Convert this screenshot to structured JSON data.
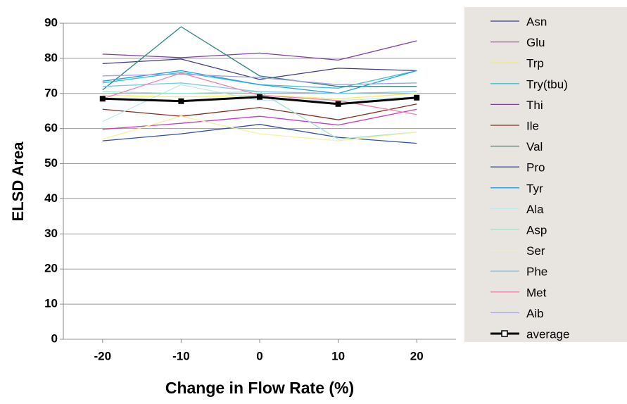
{
  "chart_data": {
    "type": "line",
    "x_label": "Change in Flow Rate (%)",
    "y_label": "ELSD Area",
    "x": [
      -20,
      -10,
      0,
      10,
      20
    ],
    "xlim": [
      -25,
      25
    ],
    "xticks": [
      -20,
      -10,
      0,
      10,
      20
    ],
    "ylim": [
      0,
      90
    ],
    "yticks": [
      0,
      10,
      20,
      30,
      40,
      50,
      60,
      70,
      80,
      90
    ],
    "grid": true,
    "legend": "right",
    "series": [
      {
        "name": "Asn",
        "color": "#3c3c8c",
        "values": [
          78.5,
          79.8,
          74,
          77.2,
          76.5
        ]
      },
      {
        "name": "Glu",
        "color": "#c040c0",
        "values": [
          59.8,
          61.5,
          63.5,
          61,
          65.5
        ]
      },
      {
        "name": "Trp",
        "color": "#f0f060",
        "values": [
          69.5,
          69,
          69.5,
          68.5,
          70
        ]
      },
      {
        "name": "Try(tbu)",
        "color": "#40c0d0",
        "values": [
          73,
          76,
          72.5,
          71.5,
          76.5
        ]
      },
      {
        "name": "Thi",
        "color": "#8040a0",
        "values": [
          81.2,
          80.2,
          81.5,
          79.5,
          85
        ]
      },
      {
        "name": "Ile",
        "color": "#803020",
        "values": [
          65.5,
          63.5,
          66,
          62.5,
          67
        ]
      },
      {
        "name": "Val",
        "color": "#308080",
        "values": [
          71,
          89,
          75,
          72,
          72
        ]
      },
      {
        "name": "Pro",
        "color": "#3050a0",
        "values": [
          56.5,
          58.5,
          61.2,
          57.5,
          55.8
        ]
      },
      {
        "name": "Tyr",
        "color": "#20a0e0",
        "values": [
          73.5,
          76.5,
          72.5,
          70,
          76.5
        ]
      },
      {
        "name": "Ala",
        "color": "#c0e8f0",
        "values": [
          62,
          72.5,
          68,
          68,
          69
        ]
      },
      {
        "name": "Asp",
        "color": "#a0e0d0",
        "values": [
          70.5,
          70,
          70.5,
          57,
          59
        ]
      },
      {
        "name": "Ser",
        "color": "#f8f0a0",
        "values": [
          57,
          63.5,
          58.5,
          56.5,
          59
        ]
      },
      {
        "name": "Phe",
        "color": "#80c8e8",
        "values": [
          72,
          73,
          70.5,
          70,
          70.5
        ]
      },
      {
        "name": "Met",
        "color": "#f080b0",
        "values": [
          68.5,
          75.8,
          69.5,
          68,
          64
        ]
      },
      {
        "name": "Aib",
        "color": "#a0a0e0",
        "values": [
          75,
          75.5,
          74.5,
          72.5,
          73
        ]
      },
      {
        "name": "average",
        "color": "#000000",
        "values": [
          68.5,
          67.8,
          69,
          67,
          68.8
        ],
        "markers": true
      }
    ]
  }
}
